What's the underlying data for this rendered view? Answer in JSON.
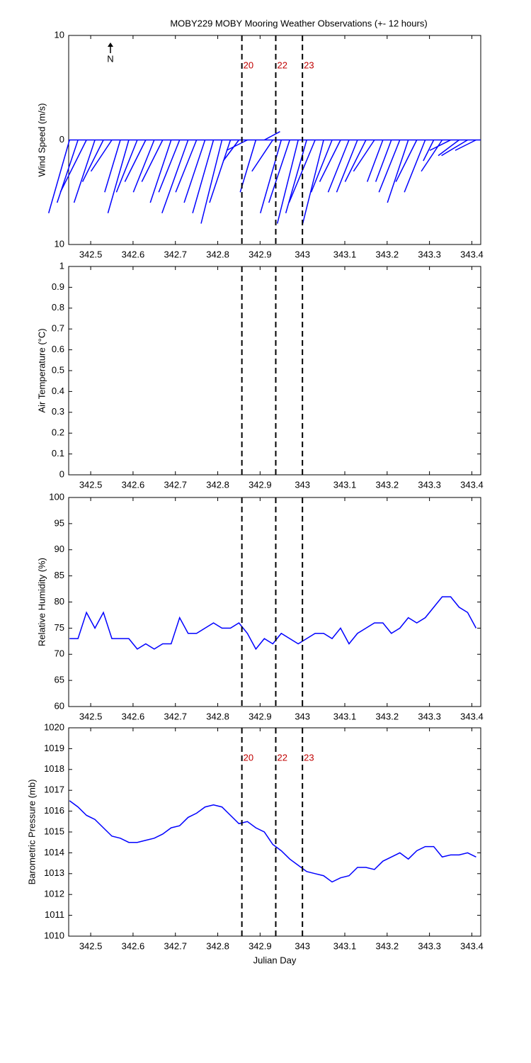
{
  "title": "MOBY229 MOBY Mooring Weather Observations (+- 12 hours)",
  "markers": [
    {
      "x": 342.857,
      "label": "20"
    },
    {
      "x": 342.937,
      "label": "22"
    },
    {
      "x": 343.0,
      "label": "23"
    }
  ],
  "chart_data": [
    {
      "type": "wind_stick",
      "ylabel": "Wind Speed (m/s)",
      "annotation": "N",
      "marker_labels": true,
      "color": "#0000ff",
      "xlim": [
        342.448,
        343.421
      ],
      "xticks": [
        342.5,
        342.6,
        342.7,
        342.8,
        342.9,
        343,
        343.1,
        343.2,
        343.3,
        343.4
      ],
      "ylim": [
        -10,
        10
      ],
      "yticks": [
        {
          "value": -10,
          "label": "10"
        },
        0,
        10
      ],
      "x": [
        342.45,
        342.47,
        342.49,
        342.51,
        342.53,
        342.55,
        342.57,
        342.59,
        342.61,
        342.63,
        342.65,
        342.67,
        342.69,
        342.71,
        342.73,
        342.75,
        342.77,
        342.79,
        342.81,
        342.83,
        342.85,
        342.87,
        342.89,
        342.91,
        342.93,
        342.95,
        342.97,
        342.99,
        343.01,
        343.03,
        343.05,
        343.07,
        343.09,
        343.11,
        343.13,
        343.15,
        343.17,
        343.19,
        343.21,
        343.23,
        343.25,
        343.27,
        343.29,
        343.31,
        343.33,
        343.35,
        343.37,
        343.39,
        343.41
      ],
      "u": [
        -2,
        -2,
        -2.5,
        -2,
        -2,
        -2,
        -1.5,
        -2,
        -2,
        -2,
        -2,
        -2,
        -2,
        -2,
        -2.5,
        -2,
        -2,
        -2,
        -2,
        -2,
        -1.5,
        -2,
        -1.5,
        1.5,
        -2,
        -2,
        -2,
        -2,
        -2,
        -2.5,
        -2,
        -2,
        -2,
        -2,
        -2,
        -2,
        -2,
        -1.5,
        -1.5,
        -2,
        -2,
        -2,
        -2,
        -1,
        -2,
        -2,
        -2,
        -2.5,
        -2
      ],
      "v": [
        -7,
        -6,
        -5,
        -6,
        -4,
        -3,
        -5,
        -7,
        -5,
        -4,
        -5,
        -4,
        -6,
        -5,
        -7,
        -5,
        -6,
        -7,
        -8,
        -6,
        -2,
        -1,
        -5,
        0.8,
        -3,
        -7,
        -6,
        -8,
        -7,
        -6,
        -8,
        -5,
        -4,
        -5,
        -5,
        -4,
        -3,
        -4,
        -4,
        -5,
        -6,
        -4,
        -5,
        -2,
        -3,
        -1,
        -1.5,
        -1.5,
        -1
      ]
    },
    {
      "type": "line",
      "ylabel": "Air Temperature (°C)",
      "marker_labels": false,
      "xlim": [
        342.448,
        343.421
      ],
      "xticks": [
        342.5,
        342.6,
        342.7,
        342.8,
        342.9,
        343,
        343.1,
        343.2,
        343.3,
        343.4
      ],
      "ylim": [
        0,
        1
      ],
      "yticks": [
        0,
        0.1,
        0.2,
        0.3,
        0.4,
        0.5,
        0.6,
        0.7,
        0.8,
        0.9,
        1
      ],
      "x": [],
      "series": []
    },
    {
      "type": "line",
      "ylabel": "Relative Humidity (%)",
      "marker_labels": false,
      "xlim": [
        342.448,
        343.421
      ],
      "xticks": [
        342.5,
        342.6,
        342.7,
        342.8,
        342.9,
        343,
        343.1,
        343.2,
        343.3,
        343.4
      ],
      "ylim": [
        60,
        100
      ],
      "yticks": [
        60,
        65,
        70,
        75,
        80,
        85,
        90,
        95,
        100
      ],
      "x": [
        342.45,
        342.47,
        342.49,
        342.51,
        342.53,
        342.55,
        342.57,
        342.59,
        342.61,
        342.63,
        342.65,
        342.67,
        342.69,
        342.71,
        342.73,
        342.75,
        342.77,
        342.79,
        342.81,
        342.83,
        342.85,
        342.87,
        342.89,
        342.91,
        342.93,
        342.95,
        342.97,
        342.99,
        343.01,
        343.03,
        343.05,
        343.07,
        343.09,
        343.11,
        343.13,
        343.15,
        343.17,
        343.19,
        343.21,
        343.23,
        343.25,
        343.27,
        343.29,
        343.31,
        343.33,
        343.35,
        343.37,
        343.39,
        343.41
      ],
      "series": [
        {
          "color": "#0000ff",
          "values": [
            73,
            73,
            78,
            75,
            78,
            73,
            73,
            73,
            71,
            72,
            71,
            72,
            72,
            77,
            74,
            74,
            75,
            76,
            75,
            75,
            76,
            74,
            71,
            73,
            72,
            74,
            73,
            72,
            73,
            74,
            74,
            73,
            75,
            72,
            74,
            75,
            76,
            76,
            74,
            75,
            77,
            76,
            77,
            79,
            81,
            81,
            79,
            78,
            75
          ]
        }
      ]
    },
    {
      "type": "line",
      "ylabel": "Barometric Pressure (mb)",
      "xlabel": "Julian Day",
      "marker_labels": true,
      "xlim": [
        342.448,
        343.421
      ],
      "xticks": [
        342.5,
        342.6,
        342.7,
        342.8,
        342.9,
        343,
        343.1,
        343.2,
        343.3,
        343.4
      ],
      "ylim": [
        1010,
        1020
      ],
      "yticks": [
        1010,
        1011,
        1012,
        1013,
        1014,
        1015,
        1016,
        1017,
        1018,
        1019,
        1020
      ],
      "x": [
        342.45,
        342.47,
        342.49,
        342.51,
        342.53,
        342.55,
        342.57,
        342.59,
        342.61,
        342.63,
        342.65,
        342.67,
        342.69,
        342.71,
        342.73,
        342.75,
        342.77,
        342.79,
        342.81,
        342.83,
        342.85,
        342.87,
        342.89,
        342.91,
        342.93,
        342.95,
        342.97,
        342.99,
        343.01,
        343.03,
        343.05,
        343.07,
        343.09,
        343.11,
        343.13,
        343.15,
        343.17,
        343.19,
        343.21,
        343.23,
        343.25,
        343.27,
        343.29,
        343.31,
        343.33,
        343.35,
        343.37,
        343.39,
        343.41
      ],
      "series": [
        {
          "color": "#0000ff",
          "values": [
            1016.5,
            1016.2,
            1015.8,
            1015.6,
            1015.2,
            1014.8,
            1014.7,
            1014.5,
            1014.5,
            1014.6,
            1014.7,
            1014.9,
            1015.2,
            1015.3,
            1015.7,
            1015.9,
            1016.2,
            1016.3,
            1016.2,
            1015.8,
            1015.4,
            1015.5,
            1015.2,
            1015.0,
            1014.4,
            1014.1,
            1013.7,
            1013.4,
            1013.1,
            1013.0,
            1012.9,
            1012.6,
            1012.8,
            1012.9,
            1013.3,
            1013.3,
            1013.2,
            1013.6,
            1013.8,
            1014.0,
            1013.7,
            1014.1,
            1014.3,
            1014.3,
            1013.8,
            1013.9,
            1013.9,
            1014.0,
            1013.8
          ]
        }
      ]
    }
  ]
}
